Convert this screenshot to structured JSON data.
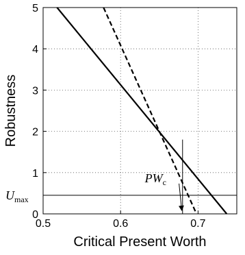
{
  "chart_data": {
    "type": "line",
    "title": "",
    "xlabel": "Critical Present Worth",
    "ylabel": "Robustness",
    "xlim": [
      0.5,
      0.75
    ],
    "ylim": [
      0,
      5
    ],
    "x_ticks": [
      0.5,
      0.6,
      0.7
    ],
    "x_tick_labels": [
      "0.5",
      "0.6",
      "0.7"
    ],
    "y_ticks": [
      0,
      1,
      2,
      3,
      4,
      5
    ],
    "y_tick_labels": [
      "0",
      "1",
      "2",
      "3",
      "4",
      "5"
    ],
    "grid": "dotted",
    "series": [
      {
        "style": "solid",
        "color": "#000000",
        "x": [
          0.518,
          0.737
        ],
        "y": [
          5,
          0
        ]
      },
      {
        "style": "dashed",
        "color": "#000000",
        "x": [
          0.578,
          0.698
        ],
        "y": [
          5,
          0
        ]
      }
    ],
    "reference_lines": [
      {
        "orientation": "horizontal",
        "y": 0.45,
        "label_main": "U",
        "label_sub": "max"
      },
      {
        "orientation": "vertical",
        "x": 0.68,
        "y_range": [
          0,
          1.8
        ]
      }
    ],
    "annotations": [
      {
        "label_main": "PW",
        "label_sub": "c",
        "text_at": [
          0.656,
          0.8
        ],
        "arrow_to": [
          0.679,
          0.05
        ]
      }
    ]
  }
}
